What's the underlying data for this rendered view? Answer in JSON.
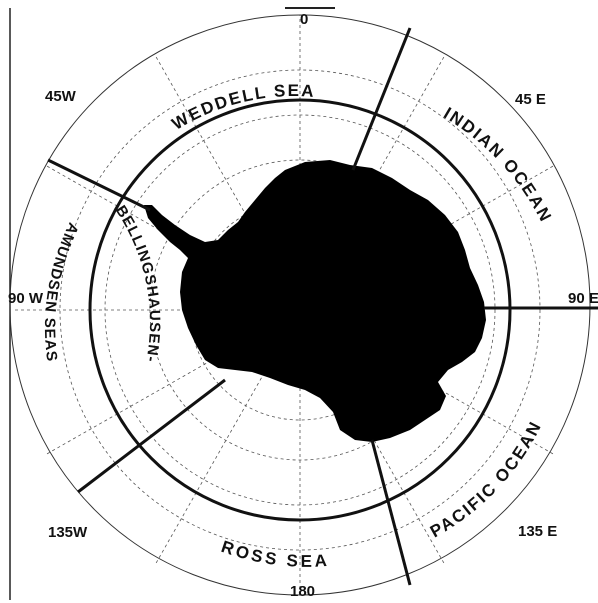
{
  "map": {
    "longitude_labels": [
      "0",
      "45 E",
      "90 E",
      "135 E",
      "180",
      "135W",
      "90 W",
      "45W"
    ],
    "sectors": [
      {
        "name": "WEDDELL SEA"
      },
      {
        "name": "INDIAN OCEAN"
      },
      {
        "name": "PACIFIC OCEAN"
      },
      {
        "name": "ROSS SEA"
      },
      {
        "name": "BELLINGSHAUSEN-"
      },
      {
        "name": "AMUNDSEN SEAS"
      }
    ],
    "colors": {
      "land": "#000000",
      "lines": "#111111",
      "grid": "#555555",
      "background": "#ffffff"
    }
  }
}
